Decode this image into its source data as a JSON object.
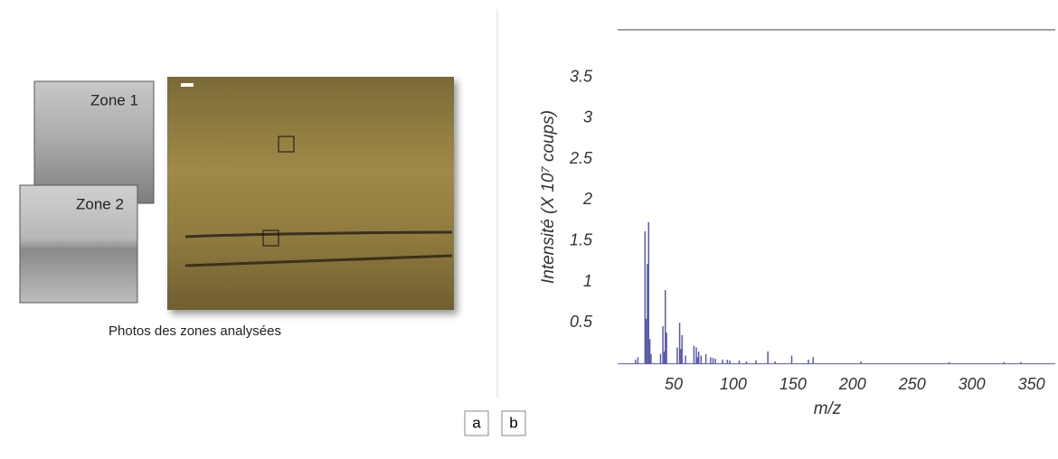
{
  "panel_a": {
    "zone_1_label": "Zone 1",
    "zone_2_label": "Zone 2",
    "caption": "Photos des zones analysées",
    "panel_label": "a"
  },
  "chart_data": {
    "type": "spectrum",
    "panel_label": "b",
    "x_label": "m/z",
    "y_label": "Intensité (X 10⁷ coups)",
    "x": [
      18,
      20,
      26,
      27,
      28,
      29,
      30,
      31,
      39,
      41,
      42,
      43,
      44,
      53,
      55,
      56,
      57,
      60,
      67,
      69,
      70,
      71,
      73,
      77,
      81,
      83,
      85,
      91,
      95,
      97,
      105,
      111,
      119,
      129,
      135,
      149,
      163,
      167,
      207,
      281,
      327,
      341
    ],
    "values": [
      0.05,
      0.08,
      1.62,
      0.55,
      1.22,
      1.73,
      0.3,
      0.12,
      0.12,
      0.46,
      0.15,
      0.9,
      0.38,
      0.2,
      0.5,
      0.18,
      0.35,
      0.1,
      0.22,
      0.2,
      0.08,
      0.15,
      0.1,
      0.12,
      0.08,
      0.07,
      0.06,
      0.05,
      0.05,
      0.04,
      0.04,
      0.03,
      0.04,
      0.15,
      0.03,
      0.1,
      0.05,
      0.08,
      0.03,
      0.02,
      0.02,
      0.02
    ],
    "color": "#5a5aa8",
    "xlim": [
      3,
      370
    ],
    "ylim": [
      0,
      4.08
    ],
    "xticks": [
      50,
      100,
      150,
      200,
      250,
      300,
      350
    ],
    "yticks": [
      0.5,
      1.0,
      1.5,
      2.0,
      2.5,
      3.0,
      3.5
    ]
  }
}
